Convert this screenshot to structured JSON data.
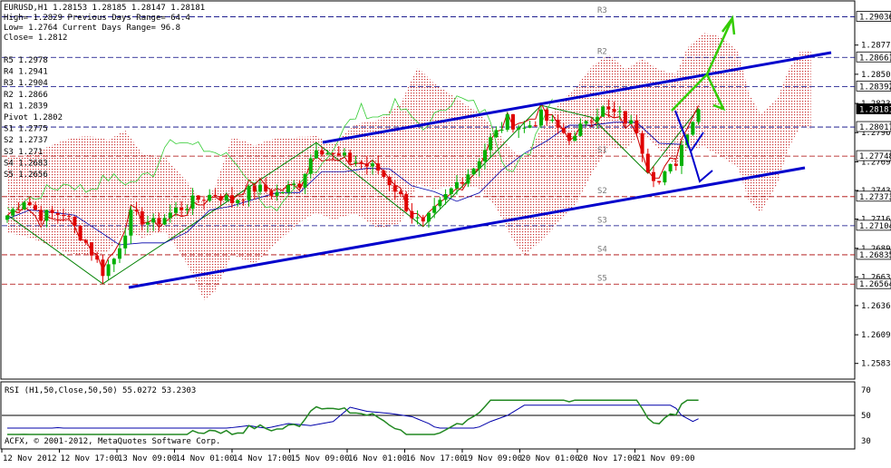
{
  "chart_data": {
    "type": "candlestick",
    "symbol_header": "EURUSD,H1  1.28153 1.28185 1.28147 1.28181",
    "info_lines": [
      "High= 1.2829   Previous Days Range= 64.4",
      "Low= 1.2764    Current Days Range= 96.8",
      "Close= 1.2812"
    ],
    "pivot_labels_left": [
      "R5 1.2978",
      "R4 1.2941",
      "R3 1.2904",
      "R2 1.2866",
      "R1 1.2839",
      "Pivot 1.2802",
      "S1 1.2775",
      "S2 1.2737",
      "S3 1.271",
      "S4 1.2683",
      "S5 1.2656"
    ],
    "pivot_zone_labels": [
      "R3",
      "R2",
      "S1",
      "S2",
      "S3",
      "S4",
      "S5"
    ],
    "price_axis": {
      "ticks": [
        "1.28775",
        "1.28505",
        "1.28235",
        "1.27965",
        "1.27695",
        "1.27430",
        "1.27165",
        "1.26895",
        "1.26630",
        "1.26365",
        "1.26095",
        "1.25830"
      ],
      "highlighted": [
        {
          "label": "1.29036",
          "value": 1.29036
        },
        {
          "label": "1.28661",
          "value": 1.28661
        },
        {
          "label": "1.28392",
          "value": 1.28392
        },
        {
          "label": "1.28181",
          "value": 1.28181
        },
        {
          "label": "1.28017",
          "value": 1.28017
        },
        {
          "label": "1.27748",
          "value": 1.27748
        },
        {
          "label": "1.27373",
          "value": 1.27373
        },
        {
          "label": "1.27104",
          "value": 1.27104
        },
        {
          "label": "1.26835",
          "value": 1.26835
        },
        {
          "label": "1.26564",
          "value": 1.26564
        }
      ],
      "ylim": [
        1.2571,
        1.2915
      ]
    },
    "time_axis": [
      "12 Nov 2012",
      "12 Nov 17:00",
      "13 Nov 09:00",
      "14 Nov 01:00",
      "14 Nov 17:00",
      "15 Nov 09:00",
      "16 Nov 01:00",
      "16 Nov 17:00",
      "19 Nov 09:00",
      "20 Nov 01:00",
      "20 Nov 17:00",
      "21 Nov 09:00"
    ],
    "price_path": [
      [
        0,
        1.272
      ],
      [
        3,
        1.2735
      ],
      [
        6,
        1.272
      ],
      [
        10,
        1.2722
      ],
      [
        14,
        1.2695
      ],
      [
        17,
        1.2668
      ],
      [
        19,
        1.268
      ],
      [
        22,
        1.272
      ],
      [
        26,
        1.2712
      ],
      [
        30,
        1.2725
      ],
      [
        34,
        1.2735
      ],
      [
        37,
        1.274
      ],
      [
        40,
        1.2733
      ],
      [
        44,
        1.2745
      ],
      [
        48,
        1.274
      ],
      [
        52,
        1.275
      ],
      [
        55,
        1.2785
      ],
      [
        58,
        1.2775
      ],
      [
        62,
        1.277
      ],
      [
        66,
        1.2762
      ],
      [
        69,
        1.2745
      ],
      [
        72,
        1.272
      ],
      [
        74,
        1.271
      ],
      [
        77,
        1.273
      ],
      [
        80,
        1.275
      ],
      [
        83,
        1.2765
      ],
      [
        86,
        1.279
      ],
      [
        89,
        1.2808
      ],
      [
        92,
        1.28
      ],
      [
        95,
        1.2812
      ],
      [
        98,
        1.28
      ],
      [
        101,
        1.279
      ],
      [
        103,
        1.281
      ],
      [
        106,
        1.2818
      ],
      [
        109,
        1.2812
      ],
      [
        112,
        1.28
      ],
      [
        114,
        1.2765
      ],
      [
        116,
        1.275
      ],
      [
        119,
        1.277
      ],
      [
        121,
        1.28
      ],
      [
        123,
        1.2818
      ]
    ],
    "rsi": {
      "label": "RSI (H1,50,Close,50,50) 55.0272 53.2303",
      "ticks": [
        "70",
        "50",
        "30"
      ],
      "level": 50,
      "ylim": [
        25,
        75
      ]
    },
    "copyright": "ACFX, © 2001-2012, MetaQuotes Software Corp.",
    "colors": {
      "bull": "#00b000",
      "bear": "#e00000",
      "trend": "#0000cc",
      "arrow": "#33cc00",
      "cloud": "#cc3333",
      "zigzag": "#008000",
      "grid_level": "#000080"
    }
  }
}
